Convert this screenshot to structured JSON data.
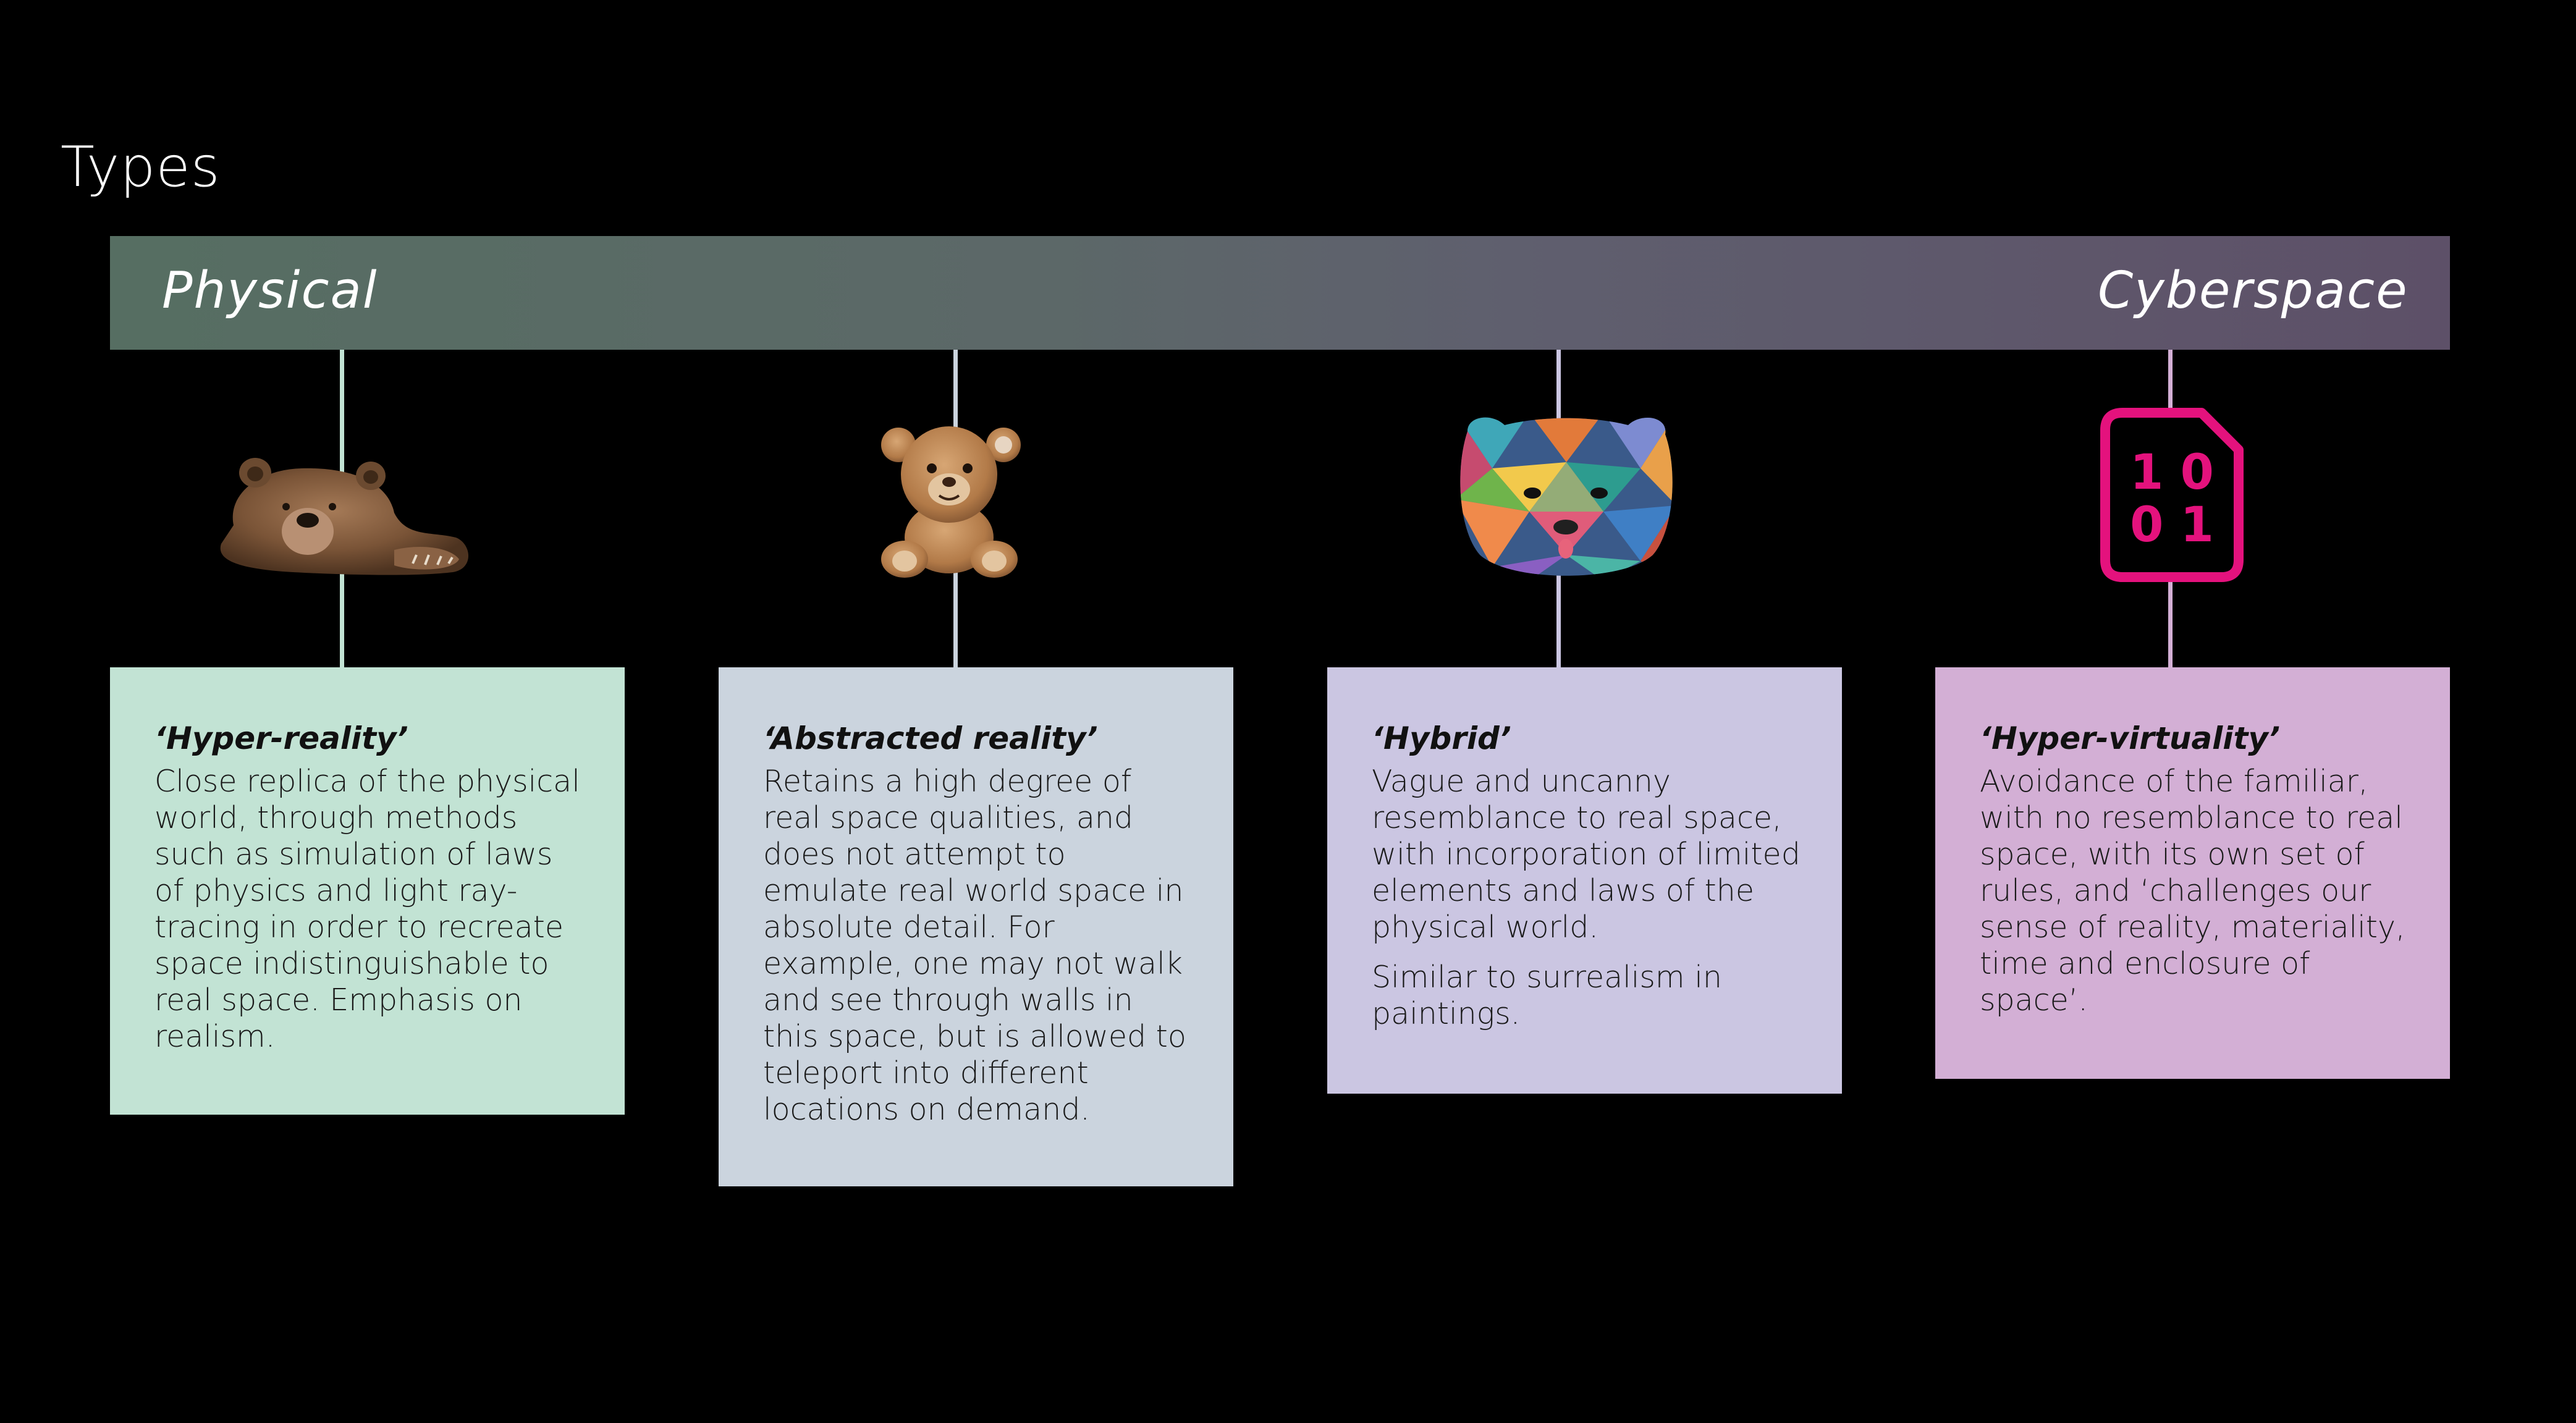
{
  "title": "Types",
  "spectrum": {
    "left_label": "Physical",
    "right_label": "Cyberspace"
  },
  "colors": {
    "background": "#000000",
    "bar_left": "#566e62",
    "bar_right": "#5d5068",
    "accent_pink": "#e4127d"
  },
  "cards": [
    {
      "title": "‘Hyper-reality’",
      "paragraphs": [
        "Close replica of the physical world, through methods such as simulation of laws of physics and light ray-tracing in order to recreate space indistinguishable to real space. Emphasis on realism."
      ],
      "background": "#c2e3d4",
      "icon": "realistic-bear-image"
    },
    {
      "title": "‘Abstracted reality’",
      "paragraphs": [
        "Retains a high degree of real space qualities, and does not attempt to emulate real world space in absolute detail. For example, one may not walk and see through walls in this space, but is allowed to teleport into different locations on demand."
      ],
      "background": "#cbd4de",
      "icon": "teddy-bear-image"
    },
    {
      "title": "‘Hybrid’",
      "paragraphs": [
        "Vague and uncanny resemblance to real space, with incorporation of limited elements and laws of the physical world.",
        "Similar to surrealism in paintings."
      ],
      "background": "#cbc6e2",
      "icon": "geometric-bear-image"
    },
    {
      "title": "‘Hyper-virtuality’",
      "paragraphs": [
        "Avoidance of the familiar, with no resemblance to real space, with its own set of rules, and ‘challenges our sense of reality, materiality, time and enclosure of space’."
      ],
      "background": "#d3afd5",
      "icon": "binary-file-icon"
    }
  ],
  "binary_icon": {
    "row1": "1 0",
    "row2": "0 1"
  }
}
